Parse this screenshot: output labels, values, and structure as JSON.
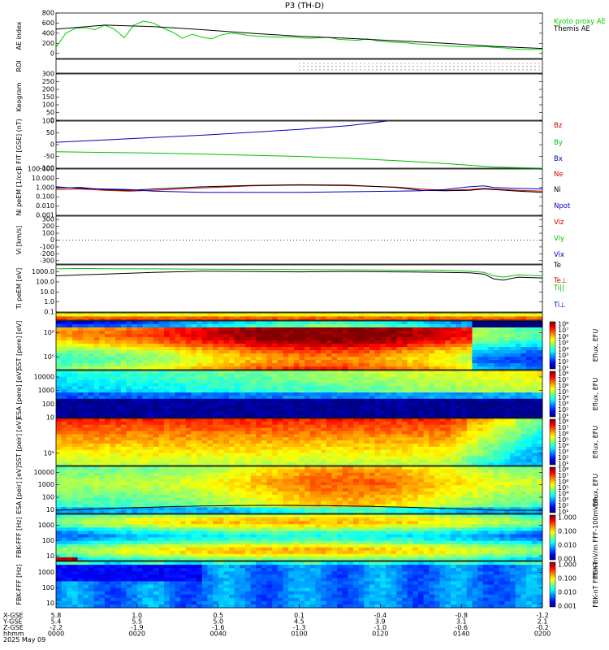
{
  "title": "P3 (TH-D)",
  "chart_data": [
    {
      "type": "line",
      "ylabel": "AE index",
      "ylim": [
        -100,
        800
      ],
      "yticks": [
        [
          "800",
          "800"
        ],
        [
          "600",
          "600"
        ],
        [
          "400",
          "400"
        ],
        [
          "200",
          "200"
        ],
        [
          "0",
          "0"
        ]
      ],
      "series": [
        {
          "name": "Kyoto proxy AE",
          "color": "#00d000",
          "x": [
            0,
            2,
            4,
            6,
            8,
            10,
            12,
            14,
            16,
            18,
            20,
            22,
            24,
            26,
            28,
            30,
            32,
            34,
            36,
            38,
            40,
            42,
            44,
            46,
            48,
            50,
            52,
            54,
            56,
            58,
            60,
            62,
            64,
            66,
            68,
            70,
            72,
            74,
            76,
            78,
            80,
            82,
            84,
            86,
            88,
            90,
            92,
            94,
            96,
            98,
            100
          ],
          "y": [
            120,
            400,
            500,
            510,
            470,
            560,
            480,
            310,
            560,
            640,
            600,
            500,
            420,
            300,
            380,
            320,
            290,
            370,
            400,
            380,
            350,
            340,
            330,
            320,
            330,
            310,
            300,
            310,
            320,
            280,
            270,
            260,
            290,
            250,
            230,
            220,
            210,
            190,
            180,
            160,
            150,
            140,
            130,
            130,
            140,
            120,
            110,
            90,
            80,
            75,
            85
          ]
        },
        {
          "name": "Themis AE",
          "color": "#000000",
          "x": [
            0,
            10,
            20,
            30,
            40,
            50,
            60,
            70,
            80,
            90,
            100
          ],
          "y": [
            480,
            560,
            530,
            470,
            400,
            340,
            300,
            250,
            200,
            140,
            100
          ]
        }
      ]
    },
    {
      "type": "line",
      "ylabel": "ROI",
      "ylim": [
        0,
        1
      ],
      "series": [],
      "yticks": []
    },
    {
      "type": "heatmap",
      "ylabel": "Keogram",
      "ylim": [
        0,
        300
      ],
      "yticks": [
        [
          "300",
          "300"
        ],
        [
          "250",
          "250"
        ],
        [
          "200",
          "200"
        ],
        [
          "150",
          "150"
        ],
        [
          "100",
          "100"
        ],
        [
          "50",
          "50"
        ],
        [
          "0",
          "0"
        ]
      ]
    },
    {
      "type": "line",
      "ylabel": "B FIT [GSE] (nT)",
      "ylim": [
        -100,
        100
      ],
      "yticks": [
        [
          "100",
          "100"
        ],
        [
          "50",
          "50"
        ],
        [
          "0",
          "0"
        ],
        [
          "-50",
          "-50"
        ],
        [
          "-100",
          "-100"
        ]
      ],
      "series": [
        {
          "name": "Bz",
          "color": "#d00000",
          "x": [],
          "y": []
        },
        {
          "name": "By",
          "color": "#00c000",
          "x": [
            0,
            10,
            20,
            30,
            40,
            50,
            60,
            70,
            80,
            90,
            100
          ],
          "y": [
            -30,
            -33,
            -36,
            -40,
            -45,
            -50,
            -58,
            -68,
            -80,
            -95,
            -110
          ]
        },
        {
          "name": "Bx",
          "color": "#0000c0",
          "x": [
            0,
            10,
            20,
            30,
            40,
            50,
            60,
            65,
            68
          ],
          "y": [
            10,
            20,
            30,
            40,
            52,
            65,
            80,
            92,
            100
          ]
        }
      ]
    },
    {
      "type": "line",
      "ylabel": "Ni peEM [1/cc]",
      "ylog": true,
      "ylim": [
        0.001,
        100
      ],
      "yticks": [
        [
          "100",
          "100.000"
        ],
        [
          "10",
          "10.000"
        ],
        [
          "1",
          "1.000"
        ],
        [
          "0.1",
          "0.100"
        ],
        [
          "0.01",
          "0.010"
        ],
        [
          "0.001",
          "0.001"
        ]
      ],
      "series": [
        {
          "name": "Ne",
          "color": "#d00000",
          "x": [
            0,
            5,
            10,
            15,
            20,
            30,
            40,
            50,
            60,
            70,
            75,
            80,
            85,
            88,
            90,
            95,
            100
          ],
          "y": [
            0.6,
            0.7,
            0.5,
            0.4,
            0.5,
            0.9,
            1.5,
            1.8,
            1.6,
            1.1,
            0.7,
            0.5,
            0.6,
            0.8,
            0.7,
            0.5,
            0.4
          ]
        },
        {
          "name": "Ni",
          "color": "#000000",
          "x": [
            0,
            5,
            10,
            15,
            20,
            30,
            40,
            50,
            60,
            70,
            75,
            80,
            85,
            88,
            90,
            95,
            100
          ],
          "y": [
            0.9,
            1.0,
            0.6,
            0.5,
            0.7,
            1.2,
            1.7,
            2.0,
            1.8,
            1.0,
            0.5,
            0.45,
            0.5,
            0.7,
            0.6,
            0.4,
            0.3
          ]
        },
        {
          "name": "Npot",
          "color": "#0000c0",
          "x": [
            0,
            5,
            10,
            15,
            20,
            30,
            40,
            50,
            60,
            70,
            75,
            80,
            85,
            88,
            90,
            95,
            100
          ],
          "y": [
            1.2,
            0.8,
            0.7,
            0.6,
            0.4,
            0.3,
            0.3,
            0.3,
            0.35,
            0.4,
            0.45,
            0.6,
            1.2,
            1.5,
            1.0,
            0.8,
            0.7
          ]
        }
      ]
    },
    {
      "type": "line",
      "ylabel": "Vi [km/s]",
      "ylim": [
        -350,
        350
      ],
      "yticks": [
        [
          "300",
          "300"
        ],
        [
          "200",
          "200"
        ],
        [
          "100",
          "100"
        ],
        [
          "0",
          "0"
        ],
        [
          "-100",
          "-100"
        ],
        [
          "-200",
          "-200"
        ],
        [
          "-300",
          "-300"
        ]
      ],
      "series": [
        {
          "name": "Viz",
          "color": "#d00000",
          "x": [],
          "y": []
        },
        {
          "name": "Viy",
          "color": "#00c000",
          "x": [],
          "y": []
        },
        {
          "name": "Vix",
          "color": "#0000c0",
          "x": [],
          "y": []
        }
      ]
    },
    {
      "type": "line",
      "ylabel": "Ti peEM [eV]",
      "ylog": true,
      "ylim": [
        0.1,
        5000
      ],
      "yticks": [
        [
          "1000",
          "1000.0"
        ],
        [
          "100",
          "100.0"
        ],
        [
          "10",
          "10.0"
        ],
        [
          "1",
          "1.0"
        ],
        [
          "0.1",
          "0.1"
        ]
      ],
      "series": [
        {
          "name": "Te",
          "color": "#000000",
          "x": [
            0,
            5,
            10,
            20,
            30,
            40,
            50,
            60,
            70,
            80,
            85,
            88,
            90,
            92,
            95,
            100
          ],
          "y": [
            400,
            500,
            600,
            900,
            1200,
            1100,
            1000,
            1100,
            1000,
            900,
            800,
            600,
            200,
            150,
            300,
            250
          ]
        },
        {
          "name": "Te⊥",
          "color": "#d00000",
          "x": [],
          "y": []
        },
        {
          "name": "Ti||",
          "color": "#00c000",
          "x": [
            0,
            5,
            10,
            20,
            30,
            40,
            50,
            60,
            70,
            80,
            85,
            88,
            90,
            92,
            95,
            100
          ],
          "y": [
            2000,
            2200,
            2100,
            2000,
            1900,
            1800,
            1700,
            1600,
            1500,
            1400,
            1200,
            900,
            400,
            300,
            500,
            400
          ]
        },
        {
          "name": "Ti⊥",
          "color": "#0000c0",
          "x": [],
          "y": []
        }
      ]
    },
    {
      "type": "heatmap",
      "ylabel": "",
      "ylim": [
        0,
        1
      ],
      "yticks": []
    },
    {
      "type": "heatmap",
      "ylabel": "SST [pere] [eV]",
      "ylog": true,
      "ylim": [
        30000,
        3000000
      ],
      "yticks": [
        [
          "1000000",
          "10⁶"
        ],
        [
          "100000",
          "10⁵"
        ]
      ],
      "colorbar": {
        "label": "Eflux, EFU",
        "ticks": [
          "10⁸",
          "10⁷",
          "10⁶",
          "10⁵",
          "10⁴",
          "10³",
          "10²",
          "10¹"
        ]
      }
    },
    {
      "type": "heatmap",
      "ylabel": "ESA [pere] [eV]",
      "ylog": true,
      "ylim": [
        10,
        30000
      ],
      "yticks": [
        [
          "10000",
          "10000"
        ],
        [
          "1000",
          "1000"
        ],
        [
          "100",
          "100"
        ],
        [
          "10",
          "10"
        ]
      ],
      "colorbar": {
        "label": "Eflux, EFU",
        "ticks": [
          "10⁸",
          "10⁷",
          "10⁶",
          "10⁵",
          "10⁴",
          "10³",
          "10²",
          "10¹"
        ]
      }
    },
    {
      "type": "heatmap",
      "ylabel": "SST [peir] [eV]",
      "ylog": true,
      "ylim": [
        30000,
        3000000
      ],
      "yticks": [
        [
          "100000",
          "10⁵"
        ]
      ],
      "colorbar": {
        "label": "Eflux, EFU",
        "ticks": [
          "10⁸",
          "10⁷",
          "10⁶",
          "10⁵",
          "10⁴",
          "10³",
          "10²",
          "10¹"
        ]
      }
    },
    {
      "type": "heatmap",
      "ylabel": "ESA [peir] [eV]",
      "ylog": true,
      "ylim": [
        5,
        30000
      ],
      "yticks": [
        [
          "10000",
          "10000"
        ],
        [
          "1000",
          "1000"
        ],
        [
          "100",
          "100"
        ],
        [
          "10",
          "10"
        ]
      ],
      "colorbar": {
        "label": "Eflux, EFU",
        "ticks": [
          "10⁸",
          "10⁷",
          "10⁶",
          "10⁵",
          "10⁴",
          "10³",
          "10²",
          "10¹"
        ]
      }
    },
    {
      "type": "heatmap",
      "ylabel": "FBK-FFF [Hz]",
      "ylog": true,
      "ylim": [
        5,
        5000
      ],
      "yticks": [
        [
          "1000",
          "1000"
        ],
        [
          "100",
          "100"
        ],
        [
          "10",
          "10"
        ]
      ],
      "colorbar": {
        "label": "FBK-mV/m FFF-100mV/m",
        "ticks": [
          "1.000",
          "0.100",
          "0.010",
          "0.001"
        ]
      }
    },
    {
      "type": "heatmap",
      "ylabel": "FBK-FFF [Hz]",
      "ylog": true,
      "ylim": [
        5,
        5000
      ],
      "yticks": [
        [
          "1000",
          "1000"
        ],
        [
          "100",
          "100"
        ],
        [
          "10",
          "10"
        ]
      ],
      "colorbar": {
        "label": "FBK-nT FFF-nT",
        "ticks": [
          "1.000",
          "0.100",
          "0.010",
          "0.001"
        ]
      }
    }
  ],
  "x_axis": {
    "row_labels": [
      "X-GSE",
      "Y-GSE",
      "Z-GSE",
      "hhmm",
      "2025 May 09"
    ],
    "ticks": [
      {
        "x": 0,
        "vals": [
          "5.8",
          "5.4",
          "-2.2",
          "0000"
        ]
      },
      {
        "x": 20,
        "vals": [
          "1.0",
          "5.5",
          "-1.9",
          "0020"
        ]
      },
      {
        "x": 40,
        "vals": [
          "0.5",
          "5.0",
          "-1.6",
          "0040"
        ]
      },
      {
        "x": 60,
        "vals": [
          "0.1",
          "4.5",
          "-1.3",
          "0100"
        ]
      },
      {
        "x": 80,
        "vals": [
          "-0.4",
          "3.9",
          "-1.0",
          "0120"
        ]
      },
      {
        "x": 100,
        "vals": [
          "-0.8",
          "3.1",
          "-0.6",
          "0140"
        ]
      },
      {
        "x": 120,
        "vals": [
          "-1.2",
          "2.1",
          "-0.2",
          "0200"
        ]
      }
    ]
  },
  "colors": {
    "jet": [
      "#000080",
      "#0000ff",
      "#0080ff",
      "#00ffff",
      "#80ff80",
      "#ffff00",
      "#ff8000",
      "#ff0000",
      "#800000"
    ]
  }
}
